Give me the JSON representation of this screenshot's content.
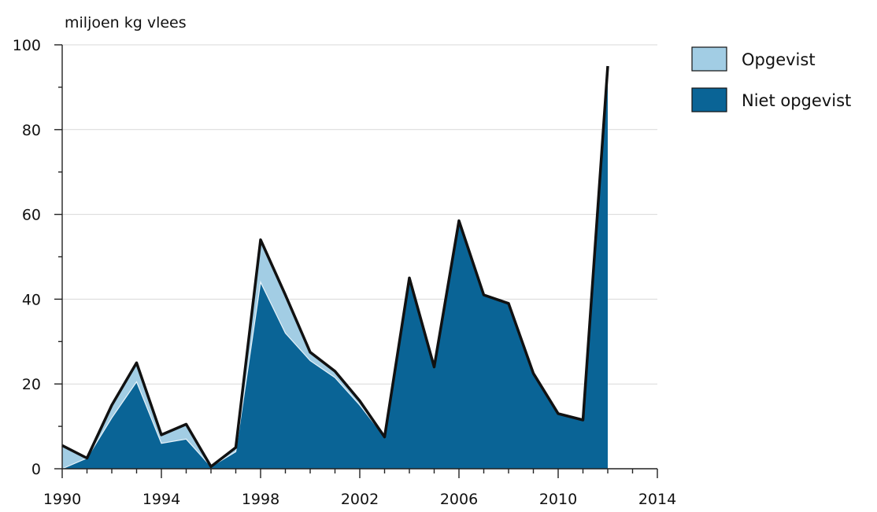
{
  "chart_data": {
    "type": "area",
    "ylabel": "miljoen kg vlees",
    "xlabel": "",
    "title": "",
    "x": [
      1990,
      1991,
      1992,
      1993,
      1994,
      1995,
      1996,
      1997,
      1998,
      1999,
      2000,
      2001,
      2002,
      2003,
      2004,
      2005,
      2006,
      2007,
      2008,
      2009,
      2010,
      2011,
      2012
    ],
    "series": [
      {
        "name": "Niet opgevist",
        "color": "#0a6496",
        "values": [
          0,
          2.5,
          12,
          20.5,
          6,
          7,
          0.5,
          4,
          44,
          32,
          25.5,
          21.5,
          15,
          7.5,
          45,
          24,
          58.5,
          41,
          39,
          22.5,
          13,
          11.5,
          95
        ]
      },
      {
        "name": "Opgevist",
        "color": "#a2cde4",
        "values": [
          5.5,
          0,
          3,
          4.5,
          2,
          3.5,
          0,
          1,
          10,
          9,
          2,
          1.5,
          1,
          0,
          0,
          0,
          0,
          0,
          0,
          0,
          0,
          0,
          0
        ]
      }
    ],
    "xticks": [
      "1990",
      "1994",
      "1998",
      "2002",
      "2006",
      "2010",
      "2014"
    ],
    "xlim": [
      1990,
      2014
    ],
    "yticks": [
      "0",
      "20",
      "40",
      "60",
      "80",
      "100"
    ],
    "ylim": [
      0,
      100
    ],
    "grid": true,
    "legend_position": "top-right",
    "outline_color": "#111111"
  }
}
